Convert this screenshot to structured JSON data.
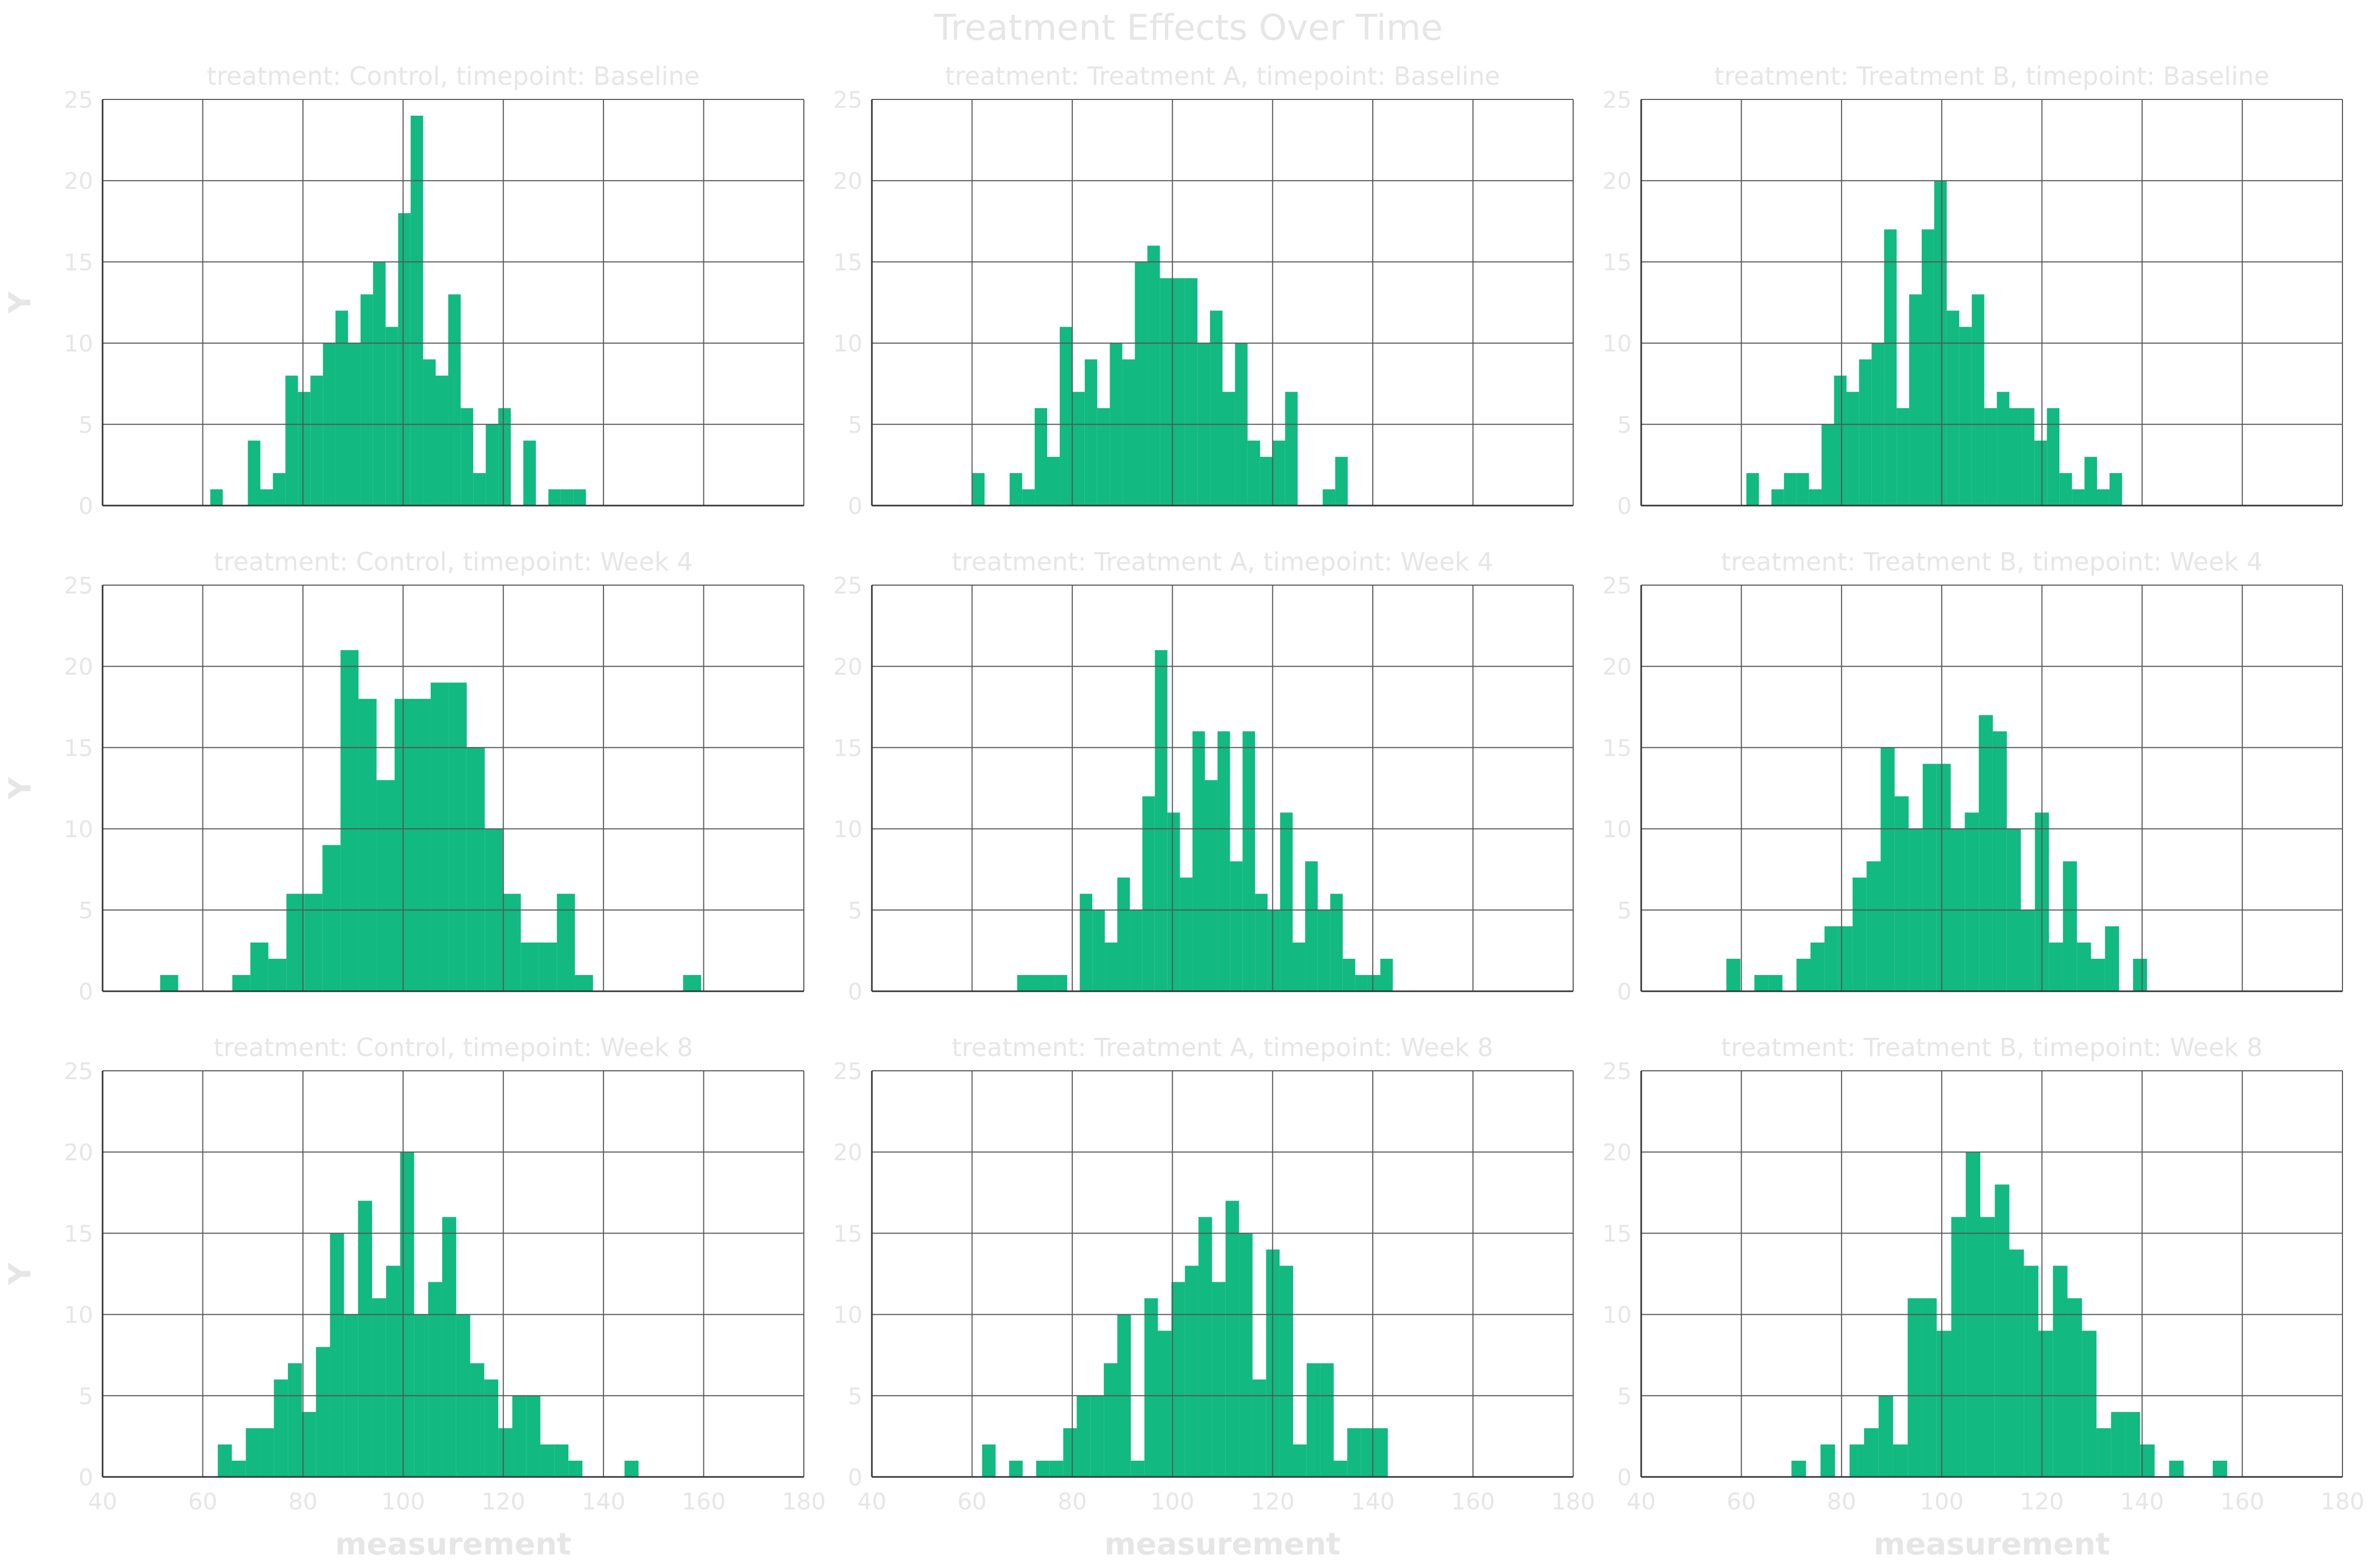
{
  "figure": {
    "title": "Treatment Effects Over Time",
    "bar_color": "#12b981",
    "grid_color": "#555555",
    "text_color": "#e6e6e6",
    "xlabel": "measurement",
    "ylabel": "Y"
  },
  "chart_data": [
    {
      "type": "bar",
      "title": "treatment: Control, timepoint: Baseline",
      "xlim": [
        40,
        180
      ],
      "ylim": [
        0,
        25
      ],
      "xticks": [
        "40",
        "60",
        "80",
        "100",
        "120",
        "140",
        "160",
        "180"
      ],
      "yticks": [
        "0",
        "5",
        "10",
        "15",
        "20",
        "25"
      ],
      "bin_start": 61.5,
      "bin_width": 2.5,
      "values": [
        1,
        0,
        0,
        4,
        1,
        2,
        8,
        7,
        8,
        10,
        12,
        10,
        13,
        15,
        11,
        18,
        24,
        9,
        8,
        13,
        6,
        2,
        5,
        6,
        0,
        4,
        0,
        1,
        1,
        1
      ]
    },
    {
      "type": "bar",
      "title": "treatment: Treatment A, timepoint: Baseline",
      "xlim": [
        40,
        180
      ],
      "ylim": [
        0,
        25
      ],
      "xticks": [
        "40",
        "60",
        "80",
        "100",
        "120",
        "140",
        "160",
        "180"
      ],
      "yticks": [
        "0",
        "5",
        "10",
        "15",
        "20",
        "25"
      ],
      "bin_start": 60,
      "bin_width": 2.5,
      "values": [
        2,
        0,
        0,
        2,
        1,
        6,
        3,
        11,
        7,
        9,
        6,
        10,
        9,
        15,
        16,
        14,
        14,
        14,
        10,
        12,
        7,
        10,
        4,
        3,
        4,
        7,
        0,
        0,
        1,
        3
      ]
    },
    {
      "type": "bar",
      "title": "treatment: Treatment B, timepoint: Baseline",
      "xlim": [
        40,
        180
      ],
      "ylim": [
        0,
        25
      ],
      "xticks": [
        "40",
        "60",
        "80",
        "100",
        "120",
        "140",
        "160",
        "180"
      ],
      "yticks": [
        "0",
        "5",
        "10",
        "15",
        "20",
        "25"
      ],
      "bin_start": 61,
      "bin_width": 2.5,
      "values": [
        2,
        0,
        1,
        2,
        2,
        1,
        5,
        8,
        7,
        9,
        10,
        17,
        6,
        13,
        17,
        20,
        12,
        11,
        13,
        6,
        7,
        6,
        6,
        4,
        6,
        2,
        1,
        3,
        1,
        2
      ]
    },
    {
      "type": "bar",
      "title": "treatment: Control, timepoint: Week 4",
      "xlim": [
        40,
        180
      ],
      "ylim": [
        0,
        25
      ],
      "xticks": [
        "40",
        "60",
        "80",
        "100",
        "120",
        "140",
        "160",
        "180"
      ],
      "yticks": [
        "0",
        "5",
        "10",
        "15",
        "20",
        "25"
      ],
      "bin_start": 51.5,
      "bin_width": 3.6,
      "values": [
        1,
        0,
        0,
        0,
        1,
        3,
        2,
        6,
        6,
        9,
        21,
        18,
        13,
        18,
        18,
        19,
        19,
        15,
        10,
        6,
        3,
        3,
        6,
        1,
        0,
        0,
        0,
        0,
        0,
        1
      ]
    },
    {
      "type": "bar",
      "title": "treatment: Treatment A, timepoint: Week 4",
      "xlim": [
        40,
        180
      ],
      "ylim": [
        0,
        25
      ],
      "xticks": [
        "40",
        "60",
        "80",
        "100",
        "120",
        "140",
        "160",
        "180"
      ],
      "yticks": [
        "0",
        "5",
        "10",
        "15",
        "20",
        "25"
      ],
      "bin_start": 69,
      "bin_width": 2.5,
      "values": [
        1,
        1,
        1,
        1,
        0,
        6,
        5,
        3,
        7,
        5,
        12,
        21,
        11,
        7,
        16,
        13,
        16,
        8,
        16,
        6,
        5,
        11,
        3,
        8,
        5,
        6,
        2,
        1,
        1,
        2
      ]
    },
    {
      "type": "bar",
      "title": "treatment: Treatment B, timepoint: Week 4",
      "xlim": [
        40,
        180
      ],
      "ylim": [
        0,
        25
      ],
      "xticks": [
        "40",
        "60",
        "80",
        "100",
        "120",
        "140",
        "160",
        "180"
      ],
      "yticks": [
        "0",
        "5",
        "10",
        "15",
        "20",
        "25"
      ],
      "bin_start": 57,
      "bin_width": 2.8,
      "values": [
        2,
        0,
        1,
        1,
        0,
        2,
        3,
        4,
        4,
        7,
        8,
        15,
        12,
        10,
        14,
        14,
        10,
        11,
        17,
        16,
        10,
        5,
        11,
        3,
        8,
        3,
        2,
        4,
        0,
        2
      ]
    },
    {
      "type": "bar",
      "title": "treatment: Control, timepoint: Week 8",
      "xlim": [
        40,
        180
      ],
      "ylim": [
        0,
        25
      ],
      "xticks": [
        "40",
        "60",
        "80",
        "100",
        "120",
        "140",
        "160",
        "180"
      ],
      "yticks": [
        "0",
        "5",
        "10",
        "15",
        "20",
        "25"
      ],
      "bin_start": 63,
      "bin_width": 2.8,
      "values": [
        2,
        1,
        3,
        3,
        6,
        7,
        4,
        8,
        15,
        10,
        17,
        11,
        13,
        20,
        10,
        12,
        16,
        10,
        7,
        6,
        3,
        5,
        5,
        2,
        2,
        1,
        0,
        0,
        0,
        1
      ]
    },
    {
      "type": "bar",
      "title": "treatment: Treatment A, timepoint: Week 8",
      "xlim": [
        40,
        180
      ],
      "ylim": [
        0,
        25
      ],
      "xticks": [
        "40",
        "60",
        "80",
        "100",
        "120",
        "140",
        "160",
        "180"
      ],
      "yticks": [
        "0",
        "5",
        "10",
        "15",
        "20",
        "25"
      ],
      "bin_start": 62,
      "bin_width": 2.7,
      "values": [
        2,
        0,
        1,
        0,
        1,
        1,
        3,
        5,
        5,
        7,
        10,
        1,
        11,
        9,
        12,
        13,
        16,
        12,
        17,
        15,
        6,
        14,
        13,
        2,
        7,
        7,
        1,
        3,
        3,
        3
      ]
    },
    {
      "type": "bar",
      "title": "treatment: Treatment B, timepoint: Week 8",
      "xlim": [
        40,
        180
      ],
      "ylim": [
        0,
        25
      ],
      "xticks": [
        "40",
        "60",
        "80",
        "100",
        "120",
        "140",
        "160",
        "180"
      ],
      "yticks": [
        "0",
        "5",
        "10",
        "15",
        "20",
        "25"
      ],
      "bin_start": 70,
      "bin_width": 2.9,
      "values": [
        1,
        0,
        2,
        0,
        2,
        3,
        5,
        2,
        11,
        11,
        9,
        16,
        20,
        16,
        18,
        14,
        13,
        9,
        13,
        11,
        9,
        3,
        4,
        4,
        2,
        0,
        1,
        0,
        0,
        1
      ]
    }
  ]
}
